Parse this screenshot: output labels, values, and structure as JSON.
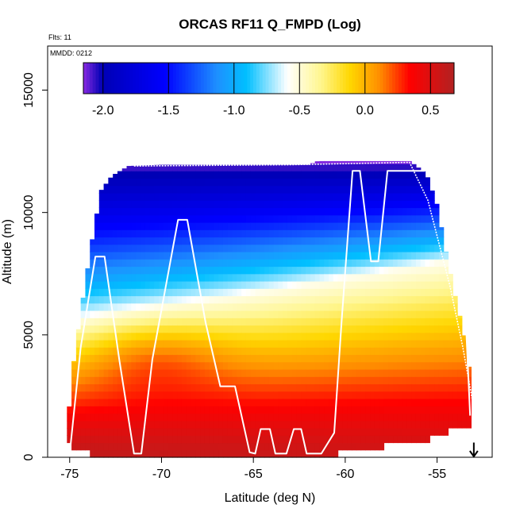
{
  "chart_data": {
    "type": "heatmap",
    "title": "ORCAS RF11 Q_FMPD (Log)",
    "flts_label": "Flts: 11",
    "mmdd_label": "MMDD: 0212",
    "xlabel": "Latitude (deg N)",
    "ylabel": "Altitude (m)",
    "xlim": [
      -76.2,
      -52.0
    ],
    "ylim": [
      0,
      16800
    ],
    "x_ticks": [
      -75,
      -70,
      -65,
      -60,
      -55
    ],
    "x_tick_labels": [
      "-75",
      "-70",
      "-65",
      "-60",
      "-55"
    ],
    "y_ticks": [
      0,
      5000,
      10000,
      15000
    ],
    "y_tick_labels": [
      "0",
      "5000",
      "10000",
      "15000"
    ],
    "colorbar": {
      "range": [
        -2.15,
        0.68
      ],
      "ticks": [
        -2.0,
        -1.5,
        -1.0,
        -0.5,
        0.0,
        0.5
      ],
      "tick_labels": [
        "-2.0",
        "-1.5",
        "-1.0",
        "-0.5",
        "0.0",
        "0.5"
      ],
      "colors": [
        "#8a2be2",
        "#0000b4",
        "#0000ff",
        "#1e90ff",
        "#00bfff",
        "#ffffff",
        "#fff68f",
        "#ffd700",
        "#ff8c00",
        "#ff0000",
        "#b22222"
      ],
      "color_stops": [
        0.0,
        0.05,
        0.22,
        0.36,
        0.44,
        0.55,
        0.64,
        0.72,
        0.8,
        0.88,
        1.0
      ]
    },
    "profile_top_alt": [
      [
        -75.1,
        1500
      ],
      [
        -74.8,
        3800
      ],
      [
        -74.3,
        6400
      ],
      [
        -73.8,
        8800
      ],
      [
        -73.3,
        10900
      ],
      [
        -72.7,
        11500
      ],
      [
        -71.8,
        11900
      ],
      [
        -70.0,
        11950
      ],
      [
        -62.0,
        11950
      ],
      [
        -61.5,
        12100
      ],
      [
        -56.5,
        12100
      ],
      [
        -55.6,
        11600
      ],
      [
        -55.0,
        10300
      ],
      [
        -54.5,
        8300
      ],
      [
        -54.0,
        6500
      ],
      [
        -53.5,
        4900
      ],
      [
        -53.2,
        3300
      ],
      [
        -53.1,
        1500
      ]
    ],
    "profile_bottom_alt": [
      [
        -75.1,
        1500
      ],
      [
        -75.1,
        700
      ],
      [
        -75.0,
        400
      ],
      [
        -72.0,
        100
      ],
      [
        -61.0,
        100
      ],
      [
        -60.5,
        300
      ],
      [
        -58.8,
        500
      ],
      [
        -55.5,
        900
      ],
      [
        -54.5,
        1200
      ],
      [
        -53.1,
        1500
      ]
    ],
    "flight_track": [
      [
        -75.0,
        150
      ],
      [
        -74.4,
        4500
      ],
      [
        -73.6,
        8200
      ],
      [
        -73.1,
        8200
      ],
      [
        -72.3,
        4000
      ],
      [
        -71.5,
        150
      ],
      [
        -71.1,
        150
      ],
      [
        -70.5,
        4000
      ],
      [
        -69.1,
        9700
      ],
      [
        -68.6,
        9700
      ],
      [
        -67.6,
        5500
      ],
      [
        -66.8,
        2900
      ],
      [
        -66.0,
        2900
      ],
      [
        -65.2,
        200
      ],
      [
        -64.9,
        150
      ],
      [
        -64.6,
        1150
      ],
      [
        -64.1,
        1150
      ],
      [
        -63.8,
        150
      ],
      [
        -63.2,
        150
      ],
      [
        -62.8,
        1150
      ],
      [
        -62.4,
        1150
      ],
      [
        -62.1,
        150
      ],
      [
        -61.3,
        150
      ],
      [
        -60.6,
        1000
      ],
      [
        -60.2,
        5500
      ],
      [
        -59.6,
        11700
      ],
      [
        -59.2,
        11700
      ],
      [
        -58.6,
        8000
      ],
      [
        -58.2,
        8000
      ],
      [
        -57.7,
        11700
      ],
      [
        -55.7,
        11700
      ],
      [
        -55.4,
        11800
      ],
      [
        -54.1,
        11700
      ],
      [
        -53.8,
        7000
      ],
      [
        -53.4,
        5000
      ],
      [
        -53.2,
        1700
      ]
    ],
    "flight_track2": [
      [
        -71.5,
        11900
      ],
      [
        -63.0,
        11950
      ],
      [
        -56.5,
        12050
      ],
      [
        -55.5,
        10500
      ],
      [
        -54.3,
        7000
      ],
      [
        -53.6,
        4500
      ],
      [
        -53.0,
        2000
      ],
      [
        -52.9,
        1800
      ]
    ],
    "field_description": "log10 Q_FMPD: about 0.6 near surface, decreasing with altitude to about -2.1 near 12 km; contours slope upward toward the north (right)",
    "field_model": {
      "surface_value": 0.62,
      "surface_value_north": 0.55,
      "top_value": -2.1,
      "top_alt": 12000,
      "transition_alt_south": 5500,
      "transition_alt_north": 8200,
      "warm_tongue_lat": -70.5,
      "warm_tongue_alt": 4200,
      "warm_tongue_strength": 0.25
    },
    "arrow_marker": {
      "lat": -53.0,
      "alt_top": 600,
      "alt_bottom": 0
    }
  }
}
